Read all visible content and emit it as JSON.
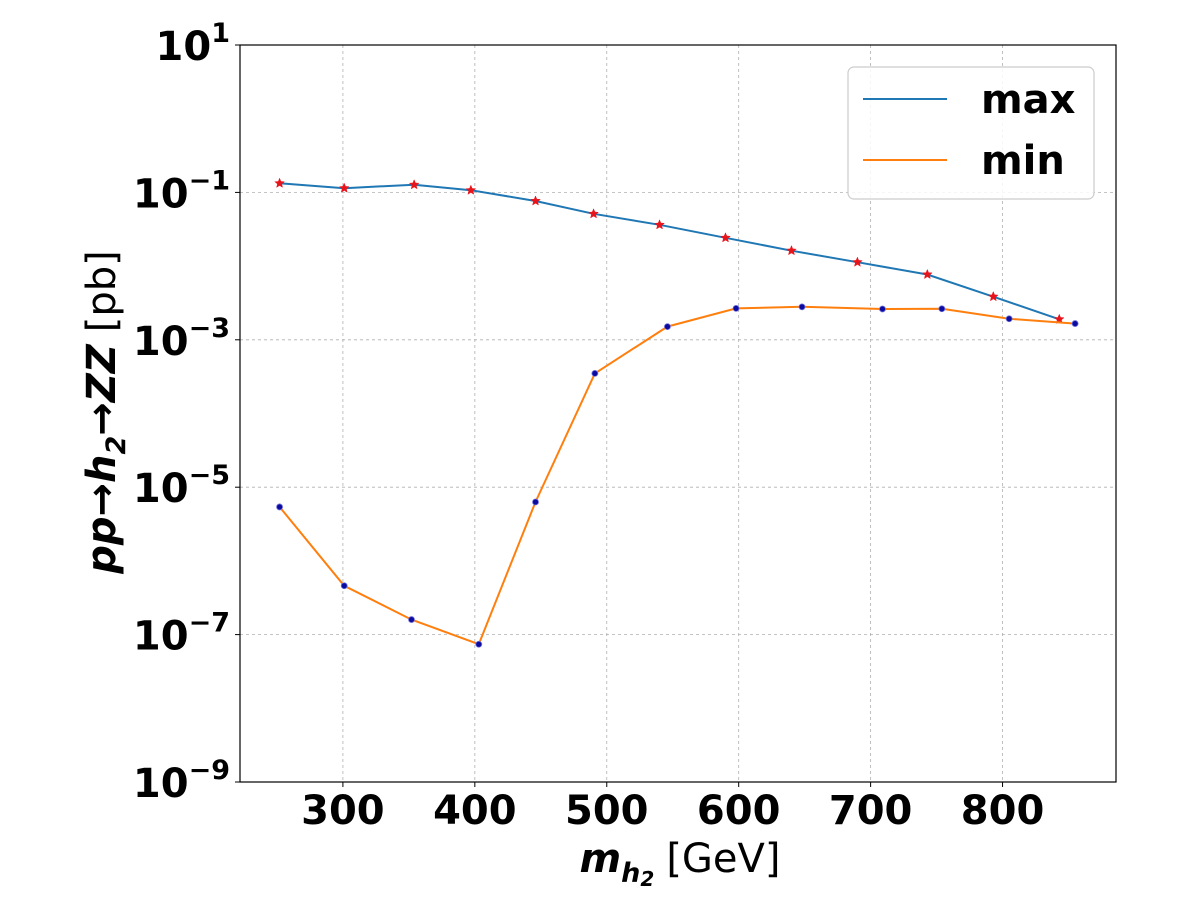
{
  "chart_data": {
    "type": "line",
    "title": "",
    "xlabel": "m_{h_2} [GeV]",
    "xlabel_parts": {
      "main": "m",
      "sub": "h",
      "sub2": "2",
      "unit": "[GeV]"
    },
    "ylabel": "pp→h_2→ZZ [pb]",
    "ylabel_parts": {
      "pre": "pp→h",
      "sub": "2",
      "post": "→ZZ",
      "unit": "[pb]"
    },
    "xlim": [
      222,
      886
    ],
    "ylim_log10": [
      -9,
      1
    ],
    "yscale": "log",
    "grid": true,
    "legend_position": "top-right",
    "x_ticks": [
      300,
      400,
      500,
      600,
      700,
      800
    ],
    "x_tick_labels": [
      "300",
      "400",
      "500",
      "600",
      "700",
      "800"
    ],
    "y_ticks_exp": [
      -9,
      -7,
      -5,
      -3,
      -1,
      1
    ],
    "y_tick_labels": [
      {
        "base": "10",
        "exp": "−9"
      },
      {
        "base": "10",
        "exp": "−7"
      },
      {
        "base": "10",
        "exp": "−5"
      },
      {
        "base": "10",
        "exp": "−3"
      },
      {
        "base": "10",
        "exp": "−1"
      },
      {
        "base": "10",
        "exp": "1"
      }
    ],
    "series": [
      {
        "name": "max",
        "color": "#1f77b4",
        "marker": "red-star",
        "x": [
          252,
          301,
          354,
          397,
          446,
          490,
          540,
          590,
          640,
          690,
          743,
          793,
          843
        ],
        "y": [
          0.133,
          0.114,
          0.127,
          0.107,
          0.0765,
          0.0512,
          0.0363,
          0.0242,
          0.0162,
          0.0113,
          0.0077,
          0.00385,
          0.0019
        ]
      },
      {
        "name": "min",
        "color": "#ff7f0e",
        "marker": "navy-dot",
        "x": [
          252,
          301,
          352,
          403,
          446,
          491,
          546,
          598,
          648,
          709,
          754,
          805,
          855
        ],
        "y": [
          5.4e-06,
          4.6e-07,
          1.6e-07,
          7.4e-08,
          6.3e-06,
          0.00035,
          0.00151,
          0.00267,
          0.0028,
          0.00262,
          0.00264,
          0.00193,
          0.00166
        ]
      }
    ]
  }
}
